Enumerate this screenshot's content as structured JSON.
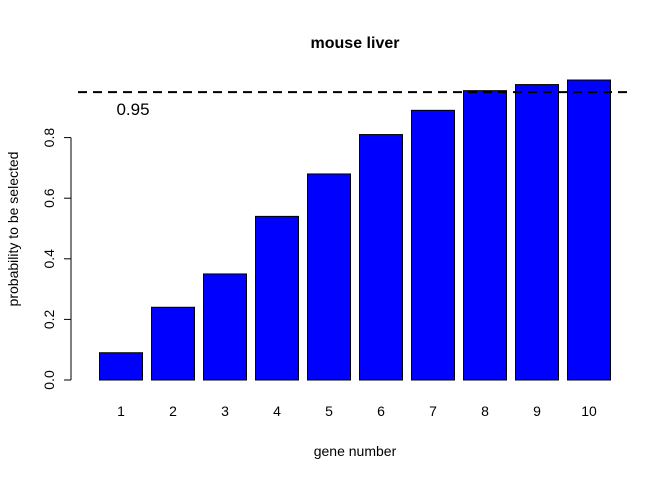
{
  "chart_data": {
    "type": "bar",
    "title": "mouse liver",
    "xlabel": "gene number",
    "ylabel": "probability to be selected",
    "categories": [
      "1",
      "2",
      "3",
      "4",
      "5",
      "6",
      "7",
      "8",
      "9",
      "10"
    ],
    "values": [
      0.09,
      0.24,
      0.35,
      0.54,
      0.68,
      0.81,
      0.89,
      0.955,
      0.975,
      0.99
    ],
    "ylim": [
      0,
      1.0
    ],
    "y_ticks": [
      "0.0",
      "0.2",
      "0.4",
      "0.6",
      "0.8"
    ],
    "reference_line": {
      "value": 0.95,
      "label": "0.95",
      "style": "dashed"
    },
    "bar_color": "#0000ff",
    "bar_border_color": "#000000",
    "grid": false,
    "legend": "none"
  }
}
